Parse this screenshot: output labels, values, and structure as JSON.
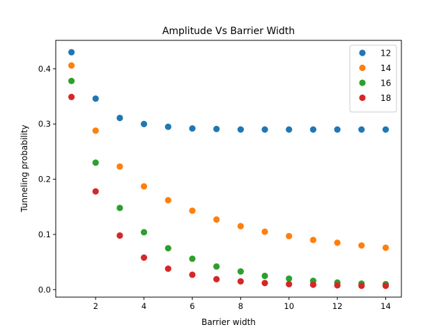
{
  "chart_data": {
    "type": "scatter",
    "title": "Amplitude Vs Barrier Width",
    "xlabel": "Barrier width",
    "ylabel": "Tunneling probability",
    "xlim": [
      0.35,
      14.65
    ],
    "ylim": [
      -0.0135,
      0.4515
    ],
    "xticks": [
      2,
      4,
      6,
      8,
      10,
      12,
      14
    ],
    "yticks": [
      0.0,
      0.1,
      0.2,
      0.3,
      0.4
    ],
    "xtick_labels": [
      "2",
      "4",
      "6",
      "8",
      "10",
      "12",
      "14"
    ],
    "ytick_labels": [
      "0.0",
      "0.1",
      "0.2",
      "0.3",
      "0.4"
    ],
    "grid": false,
    "legend_position": "top-right",
    "x": [
      1,
      2,
      3,
      4,
      5,
      6,
      7,
      8,
      9,
      10,
      11,
      12,
      13,
      14
    ],
    "series": [
      {
        "name": "12",
        "color": "#1f77b4",
        "values": [
          0.43,
          0.346,
          0.311,
          0.3,
          0.295,
          0.292,
          0.291,
          0.29,
          0.29,
          0.29,
          0.29,
          0.29,
          0.29,
          0.29
        ]
      },
      {
        "name": "14",
        "color": "#ff7f0e",
        "values": [
          0.406,
          0.288,
          0.223,
          0.187,
          0.162,
          0.143,
          0.127,
          0.115,
          0.105,
          0.097,
          0.09,
          0.085,
          0.08,
          0.076
        ]
      },
      {
        "name": "16",
        "color": "#2ca02c",
        "values": [
          0.378,
          0.23,
          0.148,
          0.104,
          0.075,
          0.056,
          0.042,
          0.033,
          0.025,
          0.02,
          0.016,
          0.013,
          0.011,
          0.01
        ]
      },
      {
        "name": "18",
        "color": "#d62728",
        "values": [
          0.349,
          0.178,
          0.098,
          0.058,
          0.038,
          0.027,
          0.019,
          0.015,
          0.012,
          0.01,
          0.009,
          0.008,
          0.007,
          0.007
        ]
      }
    ]
  }
}
